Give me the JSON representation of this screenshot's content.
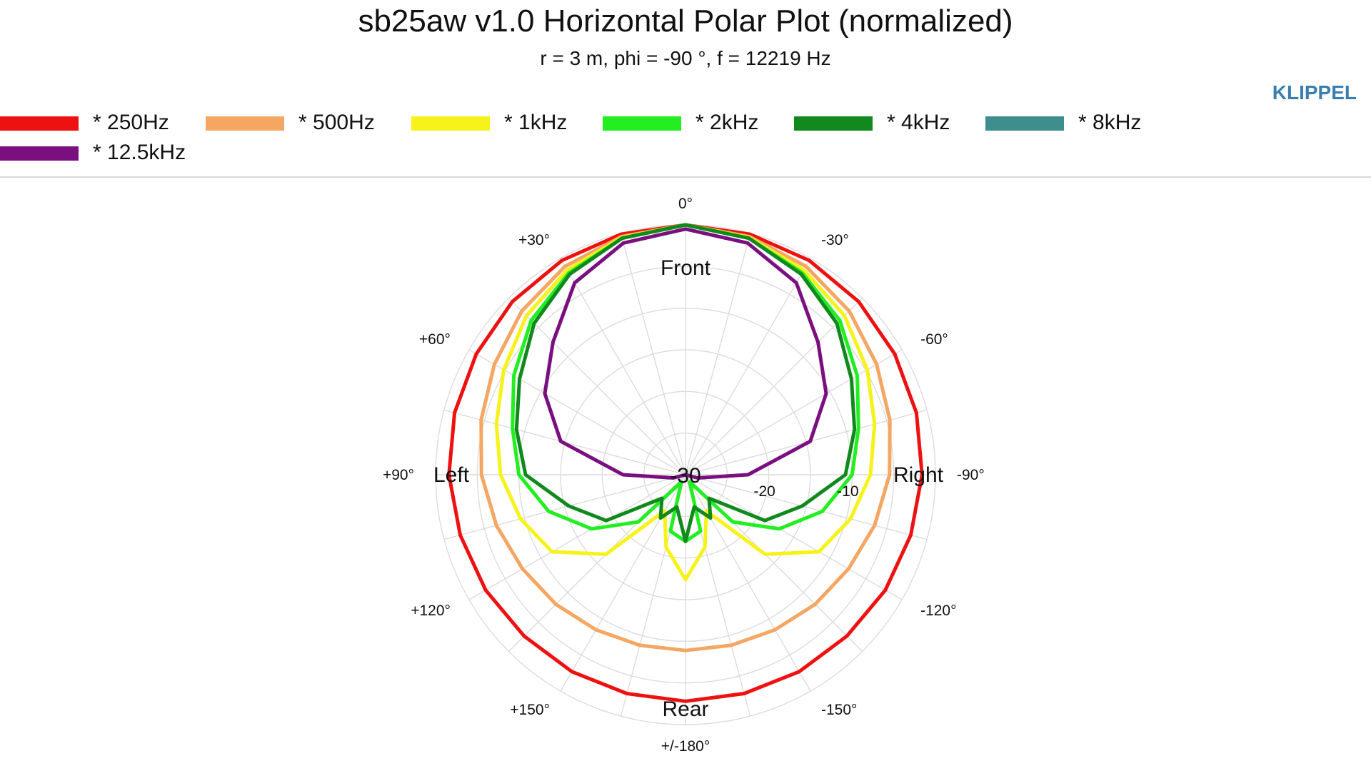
{
  "header": {
    "title": "sb25aw v1.0 Horizontal Polar Plot (normalized)",
    "subtitle": "r = 3 m, phi = -90 °, f = 12219 Hz",
    "brand": "KLIPPEL"
  },
  "legend": [
    {
      "label": "* 250Hz",
      "color": "#ee1111"
    },
    {
      "label": "* 500Hz",
      "color": "#f5a662"
    },
    {
      "label": "* 1kHz",
      "color": "#f6f21a"
    },
    {
      "label": "* 2kHz",
      "color": "#22ee22"
    },
    {
      "label": "* 4kHz",
      "color": "#11891d"
    },
    {
      "label": "* 8kHz",
      "color": "#3d8e8c"
    },
    {
      "label": "* 12.5kHz",
      "color": "#7a0f80"
    }
  ],
  "directions": {
    "front": "Front",
    "rear": "Rear",
    "left": "Left",
    "right": "Right"
  },
  "chart_data": {
    "type": "polar",
    "title": "sb25aw v1.0 Horizontal Polar Plot (normalized)",
    "subtitle": "r = 3 m, phi = -90 °, f = 12219 Hz",
    "angle_labels": [
      "0°",
      "-30°",
      "-60°",
      "-90°",
      "-120°",
      "-150°",
      "+/-180°",
      "+150°",
      "+120°",
      "+90°",
      "+60°",
      "+30°"
    ],
    "radial_labels": [
      "-30",
      "-20",
      "-10"
    ],
    "radial_range_db": [
      -30,
      0
    ],
    "grid": true,
    "legend_position": "top",
    "angles_deg": [
      0,
      15,
      30,
      45,
      60,
      75,
      90,
      105,
      120,
      135,
      150,
      165,
      180
    ],
    "series": [
      {
        "name": "* 250Hz",
        "color": "#ee1111",
        "values": [
          0,
          -0.1,
          -0.3,
          -0.6,
          -1.0,
          -1.3,
          -1.6,
          -2.0,
          -2.3,
          -2.6,
          -2.7,
          -2.8,
          -2.8
        ]
      },
      {
        "name": "* 500Hz",
        "color": "#f5a662",
        "values": [
          0,
          -0.4,
          -1.1,
          -2.2,
          -3.5,
          -4.6,
          -5.5,
          -6.5,
          -7.4,
          -8.0,
          -8.5,
          -8.8,
          -8.9
        ]
      },
      {
        "name": "* 1kHz",
        "color": "#f6f21a",
        "values": [
          0,
          -0.5,
          -1.6,
          -3.0,
          -4.8,
          -6.5,
          -7.8,
          -9.5,
          -11.5,
          -16.5,
          -25.0,
          -21.0,
          -17.4
        ]
      },
      {
        "name": "* 2kHz",
        "color": "#22ee22",
        "values": [
          0,
          -0.6,
          -2.0,
          -3.8,
          -6.2,
          -8.5,
          -10.0,
          -13.0,
          -17.0,
          -22.0,
          -29.0,
          -23.0,
          -22.0
        ]
      },
      {
        "name": "* 4kHz",
        "color": "#11891d",
        "values": [
          0,
          -0.6,
          -2.2,
          -4.3,
          -7.0,
          -9.0,
          -10.8,
          -15.5,
          -19.0,
          -26.0,
          -24.0,
          -26.0,
          -22.0
        ]
      },
      {
        "name": "* 12.5kHz",
        "color": "#7a0f80",
        "values": [
          -0.5,
          -1.2,
          -3.4,
          -7.5,
          -10.5,
          -14.5,
          -22.5,
          -28.5,
          -30.0,
          -30.0,
          -30.0,
          -30.0,
          -30.0
        ]
      }
    ],
    "symmetry": "left mirrors right"
  }
}
